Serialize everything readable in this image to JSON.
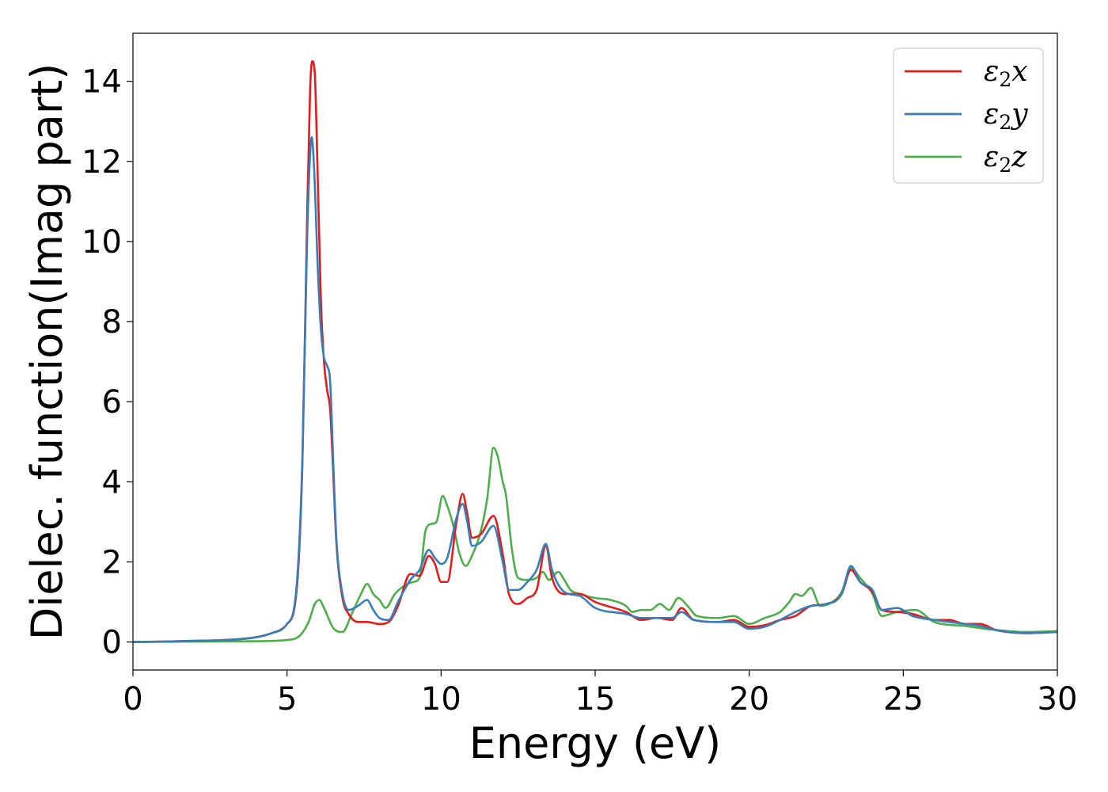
{
  "chart_data": {
    "type": "line",
    "title": "",
    "xlabel": "Energy (eV)",
    "ylabel": "Dielec. function(Imag part)",
    "xlim": [
      0,
      30
    ],
    "ylim": [
      -0.7,
      15.2
    ],
    "xticks": [
      0,
      5,
      10,
      15,
      20,
      25,
      30
    ],
    "yticks": [
      0,
      2,
      4,
      6,
      8,
      10,
      12,
      14
    ],
    "grid": false,
    "legend_position": "top-right",
    "series": [
      {
        "name": "ε₂x",
        "legend_base": "ε",
        "legend_sub": "2",
        "legend_var": "x",
        "color": "#e41a1c",
        "points": [
          [
            0,
            0.0
          ],
          [
            1,
            0.01
          ],
          [
            2,
            0.03
          ],
          [
            3,
            0.05
          ],
          [
            4,
            0.12
          ],
          [
            4.5,
            0.22
          ],
          [
            5.0,
            0.45
          ],
          [
            5.3,
            1.2
          ],
          [
            5.5,
            4.5
          ],
          [
            5.65,
            10.5
          ],
          [
            5.75,
            13.8
          ],
          [
            5.82,
            14.5
          ],
          [
            5.9,
            14.2
          ],
          [
            6.0,
            11.5
          ],
          [
            6.1,
            8.5
          ],
          [
            6.2,
            7.0
          ],
          [
            6.3,
            6.3
          ],
          [
            6.4,
            5.8
          ],
          [
            6.5,
            4.2
          ],
          [
            6.6,
            2.5
          ],
          [
            6.8,
            1.1
          ],
          [
            7.0,
            0.7
          ],
          [
            7.3,
            0.5
          ],
          [
            7.6,
            0.5
          ],
          [
            8.0,
            0.45
          ],
          [
            8.3,
            0.5
          ],
          [
            8.6,
            0.9
          ],
          [
            9.0,
            1.7
          ],
          [
            9.3,
            1.65
          ],
          [
            9.6,
            2.15
          ],
          [
            9.8,
            1.95
          ],
          [
            10.0,
            1.5
          ],
          [
            10.2,
            1.5
          ],
          [
            10.5,
            3.0
          ],
          [
            10.7,
            3.7
          ],
          [
            10.85,
            3.2
          ],
          [
            11.0,
            2.6
          ],
          [
            11.3,
            2.7
          ],
          [
            11.7,
            3.15
          ],
          [
            12.0,
            2.2
          ],
          [
            12.2,
            1.2
          ],
          [
            12.5,
            0.95
          ],
          [
            12.8,
            1.1
          ],
          [
            13.1,
            1.3
          ],
          [
            13.4,
            2.4
          ],
          [
            13.6,
            1.6
          ],
          [
            14.0,
            1.2
          ],
          [
            14.5,
            1.2
          ],
          [
            15.0,
            1.0
          ],
          [
            16.0,
            0.75
          ],
          [
            16.5,
            0.55
          ],
          [
            17.0,
            0.6
          ],
          [
            17.5,
            0.55
          ],
          [
            17.8,
            0.85
          ],
          [
            18.2,
            0.55
          ],
          [
            19.0,
            0.5
          ],
          [
            19.5,
            0.55
          ],
          [
            20.0,
            0.38
          ],
          [
            20.5,
            0.42
          ],
          [
            21.0,
            0.55
          ],
          [
            21.5,
            0.65
          ],
          [
            22.0,
            0.9
          ],
          [
            22.5,
            0.95
          ],
          [
            23.0,
            1.2
          ],
          [
            23.3,
            1.8
          ],
          [
            23.6,
            1.5
          ],
          [
            24.0,
            1.25
          ],
          [
            24.3,
            0.8
          ],
          [
            24.8,
            0.75
          ],
          [
            25.3,
            0.7
          ],
          [
            26.0,
            0.55
          ],
          [
            26.5,
            0.55
          ],
          [
            27.0,
            0.45
          ],
          [
            27.5,
            0.45
          ],
          [
            28.0,
            0.3
          ],
          [
            29.0,
            0.22
          ],
          [
            30.0,
            0.25
          ]
        ]
      },
      {
        "name": "ε₂y",
        "legend_base": "ε",
        "legend_sub": "2",
        "legend_var": "y",
        "color": "#377eb8",
        "points": [
          [
            0,
            0.0
          ],
          [
            1,
            0.01
          ],
          [
            2,
            0.03
          ],
          [
            3,
            0.05
          ],
          [
            4,
            0.12
          ],
          [
            4.5,
            0.22
          ],
          [
            5.0,
            0.45
          ],
          [
            5.3,
            1.3
          ],
          [
            5.5,
            4.6
          ],
          [
            5.65,
            10.0
          ],
          [
            5.75,
            12.2
          ],
          [
            5.8,
            12.6
          ],
          [
            5.88,
            11.8
          ],
          [
            6.0,
            9.3
          ],
          [
            6.1,
            7.8
          ],
          [
            6.2,
            7.1
          ],
          [
            6.3,
            6.9
          ],
          [
            6.4,
            6.5
          ],
          [
            6.5,
            4.5
          ],
          [
            6.6,
            2.6
          ],
          [
            6.8,
            1.2
          ],
          [
            7.0,
            0.8
          ],
          [
            7.3,
            0.9
          ],
          [
            7.6,
            1.05
          ],
          [
            7.8,
            0.8
          ],
          [
            8.0,
            0.6
          ],
          [
            8.3,
            0.55
          ],
          [
            8.6,
            1.0
          ],
          [
            9.0,
            1.55
          ],
          [
            9.3,
            1.8
          ],
          [
            9.6,
            2.3
          ],
          [
            9.8,
            2.1
          ],
          [
            10.0,
            1.95
          ],
          [
            10.2,
            2.1
          ],
          [
            10.5,
            3.1
          ],
          [
            10.7,
            3.45
          ],
          [
            10.85,
            3.0
          ],
          [
            11.0,
            2.4
          ],
          [
            11.3,
            2.5
          ],
          [
            11.7,
            2.9
          ],
          [
            12.0,
            2.0
          ],
          [
            12.2,
            1.3
          ],
          [
            12.5,
            1.3
          ],
          [
            12.8,
            1.5
          ],
          [
            13.1,
            1.8
          ],
          [
            13.4,
            2.45
          ],
          [
            13.6,
            1.8
          ],
          [
            14.0,
            1.25
          ],
          [
            14.5,
            1.15
          ],
          [
            15.0,
            0.85
          ],
          [
            16.0,
            0.7
          ],
          [
            16.5,
            0.6
          ],
          [
            17.0,
            0.6
          ],
          [
            17.5,
            0.6
          ],
          [
            17.8,
            0.75
          ],
          [
            18.2,
            0.55
          ],
          [
            19.0,
            0.5
          ],
          [
            19.5,
            0.5
          ],
          [
            20.0,
            0.33
          ],
          [
            20.5,
            0.38
          ],
          [
            21.0,
            0.55
          ],
          [
            21.5,
            0.75
          ],
          [
            22.0,
            0.9
          ],
          [
            22.5,
            0.95
          ],
          [
            23.0,
            1.2
          ],
          [
            23.3,
            1.9
          ],
          [
            23.6,
            1.5
          ],
          [
            24.0,
            1.3
          ],
          [
            24.3,
            0.8
          ],
          [
            24.8,
            0.85
          ],
          [
            25.3,
            0.65
          ],
          [
            26.0,
            0.55
          ],
          [
            26.5,
            0.5
          ],
          [
            27.0,
            0.45
          ],
          [
            27.5,
            0.4
          ],
          [
            28.0,
            0.3
          ],
          [
            29.0,
            0.22
          ],
          [
            30.0,
            0.25
          ]
        ]
      },
      {
        "name": "ε₂z",
        "legend_base": "ε",
        "legend_sub": "2",
        "legend_var": "z",
        "color": "#4daf4a",
        "points": [
          [
            0,
            0.0
          ],
          [
            2,
            0.01
          ],
          [
            4,
            0.02
          ],
          [
            5.0,
            0.05
          ],
          [
            5.4,
            0.15
          ],
          [
            5.7,
            0.5
          ],
          [
            5.9,
            0.95
          ],
          [
            6.05,
            1.05
          ],
          [
            6.2,
            0.85
          ],
          [
            6.5,
            0.35
          ],
          [
            6.8,
            0.25
          ],
          [
            7.1,
            0.7
          ],
          [
            7.4,
            1.2
          ],
          [
            7.6,
            1.45
          ],
          [
            7.8,
            1.2
          ],
          [
            8.0,
            1.05
          ],
          [
            8.2,
            0.85
          ],
          [
            8.5,
            1.2
          ],
          [
            8.8,
            1.4
          ],
          [
            9.1,
            1.5
          ],
          [
            9.3,
            1.6
          ],
          [
            9.5,
            2.8
          ],
          [
            9.7,
            2.95
          ],
          [
            9.85,
            3.0
          ],
          [
            10.05,
            3.65
          ],
          [
            10.2,
            3.4
          ],
          [
            10.4,
            2.9
          ],
          [
            10.6,
            2.2
          ],
          [
            10.8,
            1.9
          ],
          [
            11.0,
            2.15
          ],
          [
            11.3,
            2.8
          ],
          [
            11.5,
            3.6
          ],
          [
            11.7,
            4.85
          ],
          [
            11.85,
            4.6
          ],
          [
            12.0,
            4.0
          ],
          [
            12.1,
            3.7
          ],
          [
            12.3,
            2.3
          ],
          [
            12.5,
            1.6
          ],
          [
            12.8,
            1.55
          ],
          [
            13.1,
            1.6
          ],
          [
            13.3,
            1.75
          ],
          [
            13.5,
            1.55
          ],
          [
            13.8,
            1.75
          ],
          [
            14.0,
            1.55
          ],
          [
            14.2,
            1.3
          ],
          [
            14.5,
            1.2
          ],
          [
            15.0,
            1.1
          ],
          [
            15.5,
            1.05
          ],
          [
            16.0,
            0.9
          ],
          [
            16.2,
            0.75
          ],
          [
            16.5,
            0.8
          ],
          [
            16.8,
            0.8
          ],
          [
            17.1,
            0.95
          ],
          [
            17.4,
            0.8
          ],
          [
            17.7,
            1.1
          ],
          [
            18.0,
            0.9
          ],
          [
            18.3,
            0.65
          ],
          [
            19.0,
            0.6
          ],
          [
            19.5,
            0.65
          ],
          [
            20.0,
            0.45
          ],
          [
            20.5,
            0.6
          ],
          [
            21.0,
            0.75
          ],
          [
            21.3,
            1.0
          ],
          [
            21.5,
            1.2
          ],
          [
            21.7,
            1.15
          ],
          [
            22.0,
            1.35
          ],
          [
            22.3,
            0.9
          ],
          [
            22.7,
            1.0
          ],
          [
            23.0,
            1.25
          ],
          [
            23.3,
            1.85
          ],
          [
            23.6,
            1.6
          ],
          [
            24.0,
            1.2
          ],
          [
            24.3,
            0.65
          ],
          [
            24.8,
            0.75
          ],
          [
            25.4,
            0.8
          ],
          [
            26.0,
            0.5
          ],
          [
            27.0,
            0.4
          ],
          [
            28.0,
            0.3
          ],
          [
            29.0,
            0.25
          ],
          [
            30.0,
            0.27
          ]
        ]
      }
    ]
  }
}
